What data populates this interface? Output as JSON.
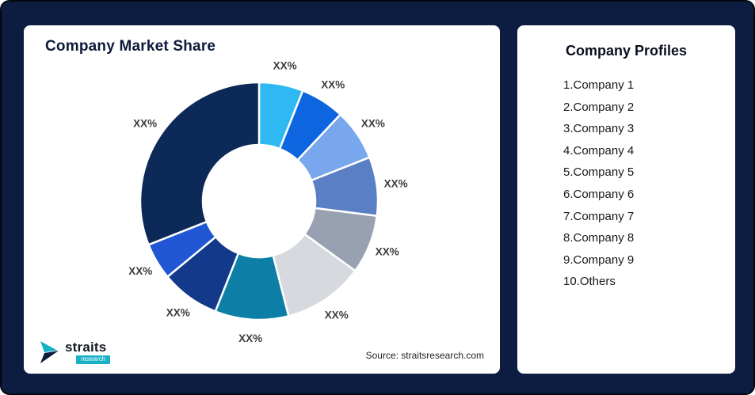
{
  "frame": {
    "background": "#0d1d41"
  },
  "chart_card": {
    "title": "Company Market Share",
    "source": "Source: straitsresearch.com"
  },
  "logo": {
    "main": "straits",
    "sub": "research",
    "mark_colors": {
      "teal": "#17b0c4",
      "navy": "#0d1d41"
    }
  },
  "profiles": {
    "title": "Company Profiles",
    "items": [
      "1.Company 1",
      "2.Company 2",
      "3.Company 3",
      "4.Company 4",
      "5.Company 5",
      "6.Company 6",
      "7.Company 7",
      "8.Company 8",
      "9.Company 9",
      "10.Others"
    ]
  },
  "chart_data": {
    "type": "pie",
    "subtype": "donut",
    "title": "Company Market Share",
    "categories": [
      "Company 1",
      "Company 2",
      "Company 3",
      "Company 4",
      "Company 5",
      "Company 6",
      "Company 7",
      "Company 8",
      "Company 9",
      "Others"
    ],
    "values": [
      6,
      6,
      7,
      8,
      8,
      11,
      10,
      8,
      5,
      31
    ],
    "value_labels": [
      "XX%",
      "XX%",
      "XX%",
      "XX%",
      "XX%",
      "XX%",
      "XX%",
      "XX%",
      "XX%",
      "XX%"
    ],
    "colors": [
      "#2fb9f2",
      "#0d66df",
      "#79a7ee",
      "#5b7fc4",
      "#98a1b1",
      "#d6dade",
      "#0d7fa6",
      "#12398a",
      "#2156d4",
      "#0d2958"
    ],
    "hole_ratio": 0.47,
    "start_angle_deg": 0,
    "direction": "clockwise",
    "legend_position": "none",
    "slice_gap_stroke": "#ffffff"
  }
}
